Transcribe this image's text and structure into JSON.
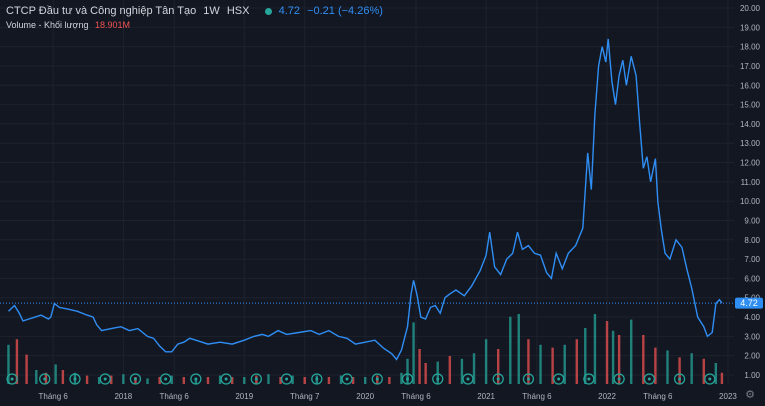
{
  "header": {
    "symbol_name": "CTCP Đầu tư và Công nghiệp Tân Tạo",
    "interval": "1W",
    "exchange": "HSX",
    "last_price": "4.72",
    "change": "−0.21 (−4.26%)",
    "volume_label": "Volume - Khối lượng",
    "volume_value": "18.901M"
  },
  "colors": {
    "background": "#131722",
    "price_line": "#2f8ef4",
    "volume_up": "#26a69a",
    "volume_down": "#ef5350",
    "grid": "#1e222d",
    "axis_text": "#b2b5be",
    "price_badge": "#2f8ef4",
    "legend_change": "#2f8ef4",
    "volume_value": "#ef5350",
    "event_marker": "#26a69a"
  },
  "chart_data": {
    "type": "line",
    "title": "",
    "xlabel": "",
    "ylabel": "",
    "ylim": [
      0,
      20
    ],
    "y_ticks": [
      "1.00",
      "2.00",
      "3.00",
      "4.00",
      "5.00",
      "6.00",
      "7.00",
      "8.00",
      "9.00",
      "10.00",
      "11.00",
      "12.00",
      "13.00",
      "14.00",
      "15.00",
      "16.00",
      "17.00",
      "18.00",
      "19.00",
      "20.00"
    ],
    "x_ticks": [
      {
        "label": "Tháng 6",
        "t": 2017.42
      },
      {
        "label": "2018",
        "t": 2018.0
      },
      {
        "label": "Tháng 6",
        "t": 2018.42
      },
      {
        "label": "2019",
        "t": 2019.0
      },
      {
        "label": "Tháng 7",
        "t": 2019.5
      },
      {
        "label": "2020",
        "t": 2020.0
      },
      {
        "label": "Tháng 6",
        "t": 2020.42
      },
      {
        "label": "2021",
        "t": 2021.0
      },
      {
        "label": "Tháng 6",
        "t": 2021.42
      },
      {
        "label": "2022",
        "t": 2022.0
      },
      {
        "label": "Tháng 6",
        "t": 2022.42
      },
      {
        "label": "2023",
        "t": 2023.0
      }
    ],
    "current_price": 4.72,
    "series": [
      {
        "type": "line",
        "points": [
          [
            2017.05,
            4.3
          ],
          [
            2017.1,
            4.6
          ],
          [
            2017.14,
            4.2
          ],
          [
            2017.17,
            3.8
          ],
          [
            2017.22,
            3.9
          ],
          [
            2017.27,
            4.0
          ],
          [
            2017.32,
            4.1
          ],
          [
            2017.38,
            3.9
          ],
          [
            2017.4,
            4.0
          ],
          [
            2017.43,
            4.7
          ],
          [
            2017.47,
            4.5
          ],
          [
            2017.55,
            4.4
          ],
          [
            2017.62,
            4.3
          ],
          [
            2017.7,
            4.1
          ],
          [
            2017.75,
            4.0
          ],
          [
            2017.78,
            3.6
          ],
          [
            2017.82,
            3.3
          ],
          [
            2017.9,
            3.4
          ],
          [
            2017.98,
            3.5
          ],
          [
            2018.05,
            3.3
          ],
          [
            2018.12,
            3.4
          ],
          [
            2018.2,
            3.0
          ],
          [
            2018.25,
            2.9
          ],
          [
            2018.3,
            2.5
          ],
          [
            2018.35,
            2.2
          ],
          [
            2018.4,
            2.2
          ],
          [
            2018.45,
            2.6
          ],
          [
            2018.5,
            2.7
          ],
          [
            2018.55,
            2.9
          ],
          [
            2018.6,
            2.8
          ],
          [
            2018.7,
            2.6
          ],
          [
            2018.8,
            2.7
          ],
          [
            2018.9,
            2.6
          ],
          [
            2019.0,
            2.8
          ],
          [
            2019.08,
            3.0
          ],
          [
            2019.15,
            3.1
          ],
          [
            2019.2,
            3.0
          ],
          [
            2019.28,
            3.3
          ],
          [
            2019.35,
            3.1
          ],
          [
            2019.45,
            3.2
          ],
          [
            2019.55,
            3.3
          ],
          [
            2019.62,
            3.1
          ],
          [
            2019.7,
            3.3
          ],
          [
            2019.78,
            3.0
          ],
          [
            2019.85,
            2.9
          ],
          [
            2019.92,
            2.6
          ],
          [
            2020.0,
            2.7
          ],
          [
            2020.08,
            2.8
          ],
          [
            2020.15,
            2.4
          ],
          [
            2020.22,
            2.1
          ],
          [
            2020.26,
            1.8
          ],
          [
            2020.3,
            2.3
          ],
          [
            2020.35,
            3.5
          ],
          [
            2020.38,
            5.2
          ],
          [
            2020.4,
            5.9
          ],
          [
            2020.43,
            5.1
          ],
          [
            2020.46,
            4.0
          ],
          [
            2020.5,
            3.9
          ],
          [
            2020.54,
            4.5
          ],
          [
            2020.58,
            4.6
          ],
          [
            2020.62,
            4.2
          ],
          [
            2020.66,
            5.0
          ],
          [
            2020.7,
            5.2
          ],
          [
            2020.75,
            5.4
          ],
          [
            2020.82,
            5.1
          ],
          [
            2020.88,
            5.6
          ],
          [
            2020.95,
            6.4
          ],
          [
            2021.0,
            7.2
          ],
          [
            2021.03,
            8.4
          ],
          [
            2021.07,
            6.6
          ],
          [
            2021.12,
            6.2
          ],
          [
            2021.17,
            7.0
          ],
          [
            2021.22,
            7.3
          ],
          [
            2021.26,
            8.4
          ],
          [
            2021.3,
            7.5
          ],
          [
            2021.35,
            7.7
          ],
          [
            2021.4,
            7.3
          ],
          [
            2021.45,
            7.2
          ],
          [
            2021.5,
            6.3
          ],
          [
            2021.54,
            6.0
          ],
          [
            2021.58,
            7.3
          ],
          [
            2021.63,
            6.5
          ],
          [
            2021.68,
            7.3
          ],
          [
            2021.74,
            7.7
          ],
          [
            2021.8,
            8.6
          ],
          [
            2021.84,
            12.5
          ],
          [
            2021.87,
            10.6
          ],
          [
            2021.9,
            14.5
          ],
          [
            2021.93,
            17.0
          ],
          [
            2021.96,
            18.0
          ],
          [
            2021.99,
            17.2
          ],
          [
            2022.01,
            18.4
          ],
          [
            2022.04,
            16.2
          ],
          [
            2022.07,
            15.0
          ],
          [
            2022.1,
            16.5
          ],
          [
            2022.13,
            17.3
          ],
          [
            2022.16,
            16.0
          ],
          [
            2022.2,
            17.5
          ],
          [
            2022.24,
            16.5
          ],
          [
            2022.27,
            14.0
          ],
          [
            2022.3,
            11.7
          ],
          [
            2022.33,
            12.3
          ],
          [
            2022.36,
            11.0
          ],
          [
            2022.4,
            12.2
          ],
          [
            2022.42,
            10.0
          ],
          [
            2022.45,
            8.5
          ],
          [
            2022.48,
            7.3
          ],
          [
            2022.52,
            7.0
          ],
          [
            2022.57,
            8.0
          ],
          [
            2022.62,
            7.6
          ],
          [
            2022.66,
            6.5
          ],
          [
            2022.7,
            5.5
          ],
          [
            2022.75,
            4.0
          ],
          [
            2022.8,
            3.5
          ],
          [
            2022.83,
            3.0
          ],
          [
            2022.87,
            3.2
          ],
          [
            2022.9,
            4.7
          ],
          [
            2022.93,
            4.9
          ],
          [
            2022.95,
            4.72
          ]
        ]
      },
      {
        "type": "bar",
        "values_t": [
          2017.05,
          2017.12,
          2017.2,
          2017.28,
          2017.36,
          2017.44,
          2017.5,
          2017.6,
          2017.7,
          2017.8,
          2017.9,
          2018.0,
          2018.1,
          2018.2,
          2018.3,
          2018.4,
          2018.5,
          2018.6,
          2018.7,
          2018.8,
          2018.9,
          2019.0,
          2019.1,
          2019.2,
          2019.3,
          2019.4,
          2019.5,
          2019.6,
          2019.7,
          2019.8,
          2019.9,
          2020.0,
          2020.1,
          2020.2,
          2020.3,
          2020.35,
          2020.4,
          2020.45,
          2020.5,
          2020.6,
          2020.7,
          2020.8,
          2020.9,
          2021.0,
          2021.1,
          2021.2,
          2021.27,
          2021.35,
          2021.45,
          2021.55,
          2021.65,
          2021.75,
          2021.82,
          2021.9,
          2022.0,
          2022.05,
          2022.1,
          2022.2,
          2022.3,
          2022.4,
          2022.5,
          2022.6,
          2022.7,
          2022.8,
          2022.9,
          2022.95
        ],
        "values": [
          2.8,
          3.2,
          2.1,
          1.0,
          0.8,
          1.4,
          1.0,
          0.8,
          0.6,
          0.5,
          0.6,
          0.7,
          0.5,
          0.4,
          0.5,
          0.6,
          0.5,
          0.4,
          0.5,
          0.6,
          0.5,
          0.5,
          0.6,
          0.7,
          0.5,
          0.6,
          0.5,
          0.6,
          0.5,
          0.6,
          0.5,
          0.5,
          0.6,
          0.5,
          0.8,
          1.8,
          4.4,
          2.5,
          1.5,
          1.6,
          2.0,
          1.8,
          2.2,
          3.2,
          2.5,
          4.8,
          5.0,
          3.2,
          2.8,
          2.6,
          2.8,
          3.2,
          4.0,
          5.0,
          4.5,
          3.8,
          3.5,
          4.6,
          3.5,
          2.6,
          2.4,
          1.9,
          2.2,
          1.8,
          1.5,
          0.8
        ],
        "up": [
          true,
          false,
          false,
          true,
          false,
          true,
          false,
          true,
          false,
          true,
          false,
          true,
          false,
          true,
          false,
          true,
          false,
          true,
          false,
          true,
          false,
          true,
          false,
          true,
          false,
          true,
          false,
          true,
          false,
          true,
          false,
          true,
          false,
          false,
          true,
          true,
          true,
          false,
          false,
          true,
          false,
          true,
          true,
          true,
          false,
          true,
          true,
          false,
          true,
          false,
          true,
          false,
          true,
          true,
          false,
          true,
          false,
          true,
          false,
          false,
          true,
          false,
          true,
          false,
          true,
          false
        ]
      }
    ],
    "event_markers_t": [
      2017.08,
      2017.35,
      2017.6,
      2017.85,
      2018.1,
      2018.35,
      2018.6,
      2018.85,
      2019.1,
      2019.35,
      2019.6,
      2019.85,
      2020.1,
      2020.35,
      2020.6,
      2020.85,
      2021.1,
      2021.35,
      2021.6,
      2021.85,
      2022.1,
      2022.35,
      2022.6,
      2022.85
    ]
  }
}
